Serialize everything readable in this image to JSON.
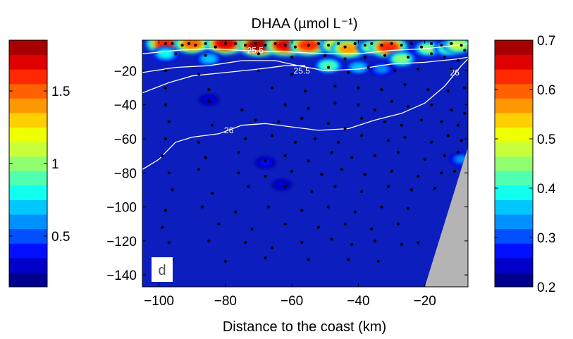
{
  "chart_data": {
    "type": "heatmap",
    "title": "DHAA (µmol L⁻¹)",
    "xlabel": "Distance to the coast (km)",
    "ylabel": "",
    "xlim": [
      -105,
      -7
    ],
    "ylim": [
      -147,
      -2
    ],
    "x_ticks": [
      -100,
      -80,
      -60,
      -40,
      -20
    ],
    "y_ticks": [
      -20,
      -40,
      -60,
      -80,
      -100,
      -120,
      -140
    ],
    "panel_label": "d",
    "field_description": "Contoured DHAA concentration section; high values near surface (0-15 m), low background below; grey bottom/coast mask at right",
    "hotspots": [
      {
        "x": -98,
        "y": -4,
        "value": 1.6
      },
      {
        "x": -90,
        "y": -4,
        "value": 1.5
      },
      {
        "x": -80,
        "y": -4,
        "value": 1.7
      },
      {
        "x": -70,
        "y": -5,
        "value": 1.8
      },
      {
        "x": -62,
        "y": -5,
        "value": 1.7
      },
      {
        "x": -55,
        "y": -5,
        "value": 1.6
      },
      {
        "x": -47,
        "y": -5,
        "value": 1.2
      },
      {
        "x": -43,
        "y": -7,
        "value": 1.4
      },
      {
        "x": -36,
        "y": -6,
        "value": 1.0
      },
      {
        "x": -31,
        "y": -6,
        "value": 1.6
      },
      {
        "x": -27,
        "y": -13,
        "value": 1.0
      },
      {
        "x": -19,
        "y": -7,
        "value": 1.0
      },
      {
        "x": -13,
        "y": -7,
        "value": 0.9
      },
      {
        "x": -10,
        "y": -5,
        "value": 1.1
      },
      {
        "x": -98,
        "y": -10,
        "value": 0.8
      },
      {
        "x": -85,
        "y": -13,
        "value": 0.7
      },
      {
        "x": -49,
        "y": -17,
        "value": 0.9
      },
      {
        "x": -40,
        "y": -18,
        "value": 0.7
      },
      {
        "x": -33,
        "y": -19,
        "value": 0.6
      },
      {
        "x": -9,
        "y": -72,
        "value": 0.6
      },
      {
        "x": -68,
        "y": -74,
        "value": 0.4
      },
      {
        "x": -85,
        "y": -37,
        "value": 0.35
      },
      {
        "x": -63,
        "y": -87,
        "value": 0.35
      }
    ],
    "isopycnals": [
      {
        "label": "25.5",
        "points": [
          [
            -105,
            -10
          ],
          [
            -95,
            -8
          ],
          [
            -85,
            -7
          ],
          [
            -75,
            -8
          ],
          [
            -60,
            -9
          ],
          [
            -50,
            -10
          ],
          [
            -40,
            -10
          ],
          [
            -30,
            -8
          ],
          [
            -20,
            -7
          ],
          [
            -10,
            -5
          ],
          [
            -7,
            -4
          ]
        ],
        "label_at": [
          -71,
          -8
        ]
      },
      {
        "label": "25.5",
        "points": [
          [
            -105,
            -21
          ],
          [
            -95,
            -18
          ],
          [
            -85,
            -17
          ],
          [
            -75,
            -14
          ],
          [
            -65,
            -14
          ],
          [
            -58,
            -17
          ],
          [
            -50,
            -20
          ],
          [
            -40,
            -19
          ],
          [
            -30,
            -16
          ],
          [
            -20,
            -15
          ],
          [
            -10,
            -13
          ],
          [
            -7,
            -12
          ]
        ],
        "label_at": [
          -57,
          -20
        ]
      },
      {
        "label": "26",
        "points": [
          [
            -105,
            -33
          ],
          [
            -97,
            -27
          ],
          [
            -90,
            -23
          ],
          [
            -80,
            -21
          ],
          [
            -70,
            -19
          ],
          [
            -62,
            -17
          ],
          [
            -56,
            -17
          ]
        ]
      },
      {
        "label": "26",
        "points": [
          [
            -105,
            -78
          ],
          [
            -100,
            -72
          ],
          [
            -95,
            -62
          ],
          [
            -90,
            -59
          ],
          [
            -82,
            -57
          ],
          [
            -75,
            -52
          ],
          [
            -68,
            -51
          ],
          [
            -60,
            -53
          ],
          [
            -52,
            -55
          ],
          [
            -43,
            -54
          ],
          [
            -35,
            -49
          ],
          [
            -27,
            -45
          ],
          [
            -20,
            -39
          ],
          [
            -14,
            -29
          ],
          [
            -9,
            -17
          ],
          [
            -7,
            -13
          ]
        ],
        "label_at": [
          -79,
          -55
        ],
        "label2_at": [
          -11,
          -21
        ]
      }
    ],
    "sample_points": [
      [
        -98,
        -4
      ],
      [
        -96,
        -4
      ],
      [
        -93,
        -5
      ],
      [
        -91,
        -4
      ],
      [
        -89,
        -5
      ],
      [
        -86,
        -4
      ],
      [
        -83,
        -6
      ],
      [
        -80,
        -4
      ],
      [
        -77,
        -4
      ],
      [
        -74,
        -5
      ],
      [
        -71,
        -4
      ],
      [
        -68,
        -5
      ],
      [
        -65,
        -4
      ],
      [
        -62,
        -5
      ],
      [
        -59,
        -6
      ],
      [
        -55,
        -5
      ],
      [
        -52,
        -4
      ],
      [
        -49,
        -5
      ],
      [
        -46,
        -4
      ],
      [
        -44,
        -6
      ],
      [
        -41,
        -4
      ],
      [
        -38,
        -5
      ],
      [
        -36,
        -4
      ],
      [
        -33,
        -5
      ],
      [
        -30,
        -4
      ],
      [
        -27,
        -5
      ],
      [
        -24,
        -4
      ],
      [
        -21,
        -6
      ],
      [
        -18,
        -4
      ],
      [
        -15,
        -5
      ],
      [
        -12,
        -4
      ],
      [
        -9,
        -5
      ],
      [
        -8,
        -8
      ],
      [
        -95,
        -10
      ],
      [
        -86,
        -11
      ],
      [
        -70,
        -10
      ],
      [
        -60,
        -12
      ],
      [
        -50,
        -11
      ],
      [
        -44,
        -13
      ],
      [
        -38,
        -12
      ],
      [
        -32,
        -11
      ],
      [
        -25,
        -12
      ],
      [
        -18,
        -10
      ],
      [
        -14,
        -12
      ],
      [
        -10,
        -14
      ],
      [
        -98,
        -20
      ],
      [
        -88,
        -22
      ],
      [
        -70,
        -20
      ],
      [
        -60,
        -22
      ],
      [
        -49,
        -18
      ],
      [
        -43,
        -21
      ],
      [
        -37,
        -18
      ],
      [
        -29,
        -20
      ],
      [
        -22,
        -19
      ],
      [
        -12,
        -19
      ],
      [
        -98,
        -30
      ],
      [
        -85,
        -31
      ],
      [
        -66,
        -30
      ],
      [
        -56,
        -32
      ],
      [
        -47,
        -29
      ],
      [
        -40,
        -30
      ],
      [
        -33,
        -31
      ],
      [
        -26,
        -28
      ],
      [
        -19,
        -31
      ],
      [
        -13,
        -32
      ],
      [
        -8,
        -30
      ],
      [
        -98,
        -40
      ],
      [
        -85,
        -38
      ],
      [
        -75,
        -43
      ],
      [
        -62,
        -40
      ],
      [
        -55,
        -42
      ],
      [
        -47,
        -39
      ],
      [
        -40,
        -40
      ],
      [
        -35,
        -43
      ],
      [
        -30,
        -38
      ],
      [
        -25,
        -41
      ],
      [
        -18,
        -40
      ],
      [
        -12,
        -43
      ],
      [
        -8,
        -45
      ],
      [
        -97,
        -50
      ],
      [
        -84,
        -52
      ],
      [
        -71,
        -49
      ],
      [
        -64,
        -50
      ],
      [
        -57,
        -48
      ],
      [
        -49,
        -51
      ],
      [
        -44,
        -54
      ],
      [
        -39,
        -48
      ],
      [
        -32,
        -50
      ],
      [
        -27,
        -52
      ],
      [
        -21,
        -49
      ],
      [
        -15,
        -50
      ],
      [
        -10,
        -52
      ],
      [
        -98,
        -60
      ],
      [
        -88,
        -62
      ],
      [
        -74,
        -60
      ],
      [
        -66,
        -58
      ],
      [
        -59,
        -62
      ],
      [
        -53,
        -60
      ],
      [
        -46,
        -62
      ],
      [
        -39,
        -58
      ],
      [
        -31,
        -61
      ],
      [
        -26,
        -59
      ],
      [
        -18,
        -62
      ],
      [
        -13,
        -58
      ],
      [
        -9,
        -61
      ],
      [
        -99,
        -70
      ],
      [
        -86,
        -71
      ],
      [
        -76,
        -68
      ],
      [
        -68,
        -73
      ],
      [
        -62,
        -70
      ],
      [
        -55,
        -73
      ],
      [
        -48,
        -68
      ],
      [
        -42,
        -71
      ],
      [
        -35,
        -70
      ],
      [
        -28,
        -68
      ],
      [
        -20,
        -72
      ],
      [
        -14,
        -70
      ],
      [
        -10,
        -68
      ],
      [
        -97,
        -80
      ],
      [
        -88,
        -78
      ],
      [
        -76,
        -80
      ],
      [
        -68,
        -82
      ],
      [
        -60,
        -79
      ],
      [
        -51,
        -81
      ],
      [
        -45,
        -78
      ],
      [
        -38,
        -81
      ],
      [
        -30,
        -79
      ],
      [
        -22,
        -82
      ],
      [
        -15,
        -80
      ],
      [
        -11,
        -79
      ],
      [
        -96,
        -90
      ],
      [
        -84,
        -92
      ],
      [
        -73,
        -88
      ],
      [
        -62,
        -88
      ],
      [
        -54,
        -91
      ],
      [
        -47,
        -88
      ],
      [
        -39,
        -91
      ],
      [
        -31,
        -88
      ],
      [
        -24,
        -90
      ],
      [
        -17,
        -89
      ],
      [
        -98,
        -102
      ],
      [
        -87,
        -100
      ],
      [
        -77,
        -103
      ],
      [
        -67,
        -100
      ],
      [
        -57,
        -102
      ],
      [
        -49,
        -100
      ],
      [
        -41,
        -103
      ],
      [
        -33,
        -100
      ],
      [
        -25,
        -101
      ],
      [
        -99,
        -112
      ],
      [
        -82,
        -110
      ],
      [
        -72,
        -113
      ],
      [
        -62,
        -110
      ],
      [
        -52,
        -112
      ],
      [
        -44,
        -110
      ],
      [
        -36,
        -113
      ],
      [
        -28,
        -110
      ],
      [
        -97,
        -121
      ],
      [
        -85,
        -120
      ],
      [
        -74,
        -121
      ],
      [
        -66,
        -124
      ],
      [
        -57,
        -121
      ],
      [
        -48,
        -119
      ],
      [
        -42,
        -122
      ],
      [
        -35,
        -120
      ],
      [
        -27,
        -122
      ],
      [
        -22,
        -121
      ],
      [
        -96,
        -131
      ],
      [
        -80,
        -132
      ],
      [
        -68,
        -130
      ],
      [
        -55,
        -131
      ],
      [
        -43,
        -131
      ],
      [
        -34,
        -132
      ]
    ],
    "mask_polygon": [
      [
        -20,
        -147
      ],
      [
        -7,
        -65
      ],
      [
        -7,
        -147
      ]
    ],
    "colorbar_left": {
      "min": 0.15,
      "max": 1.85,
      "levels": 17,
      "tick_values": [
        0.5,
        1,
        1.5
      ],
      "tick_labels": [
        "0.5",
        "1",
        "1.5"
      ]
    },
    "colorbar_right": {
      "min": 0.2,
      "max": 0.7,
      "levels": 17,
      "tick_values": [
        0.2,
        0.3,
        0.4,
        0.5,
        0.6,
        0.7
      ],
      "tick_labels": [
        "0.2",
        "0.3",
        "0.4",
        "0.5",
        "0.6",
        "0.7"
      ]
    },
    "colormap": [
      "#00008f",
      "#0000c8",
      "#0010ff",
      "#0050ff",
      "#0090ff",
      "#00c8ff",
      "#10ffef",
      "#50ffaf",
      "#90ff70",
      "#c8ff38",
      "#f0ff00",
      "#ffd000",
      "#ff9800",
      "#ff6000",
      "#ff2800",
      "#e00000",
      "#a80000"
    ],
    "background_color": "#0c1ebe",
    "mask_color": "#b4b4b4"
  }
}
